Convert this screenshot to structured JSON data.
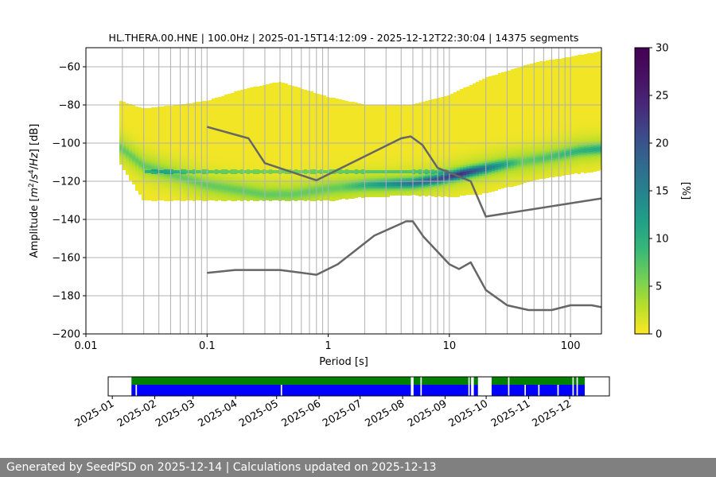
{
  "chart_data": [
    {
      "type": "heatmap",
      "title": "HL.THERA.00.HNE | 100.0Hz | 2025-01-15T14:12:09 - 2025-12-12T22:30:04 | 14375 segments",
      "xlabel": "Period [s]",
      "ylabel_parts": [
        "Amplitude [",
        "m",
        "2",
        "/",
        "s",
        "4",
        "/",
        "Hz",
        "] [dB]"
      ],
      "x_scale": "log",
      "xlim": [
        0.01,
        180
      ],
      "ylim": [
        -200,
        -50
      ],
      "x_ticks": [
        {
          "value": 0.01,
          "label": "0.01"
        },
        {
          "value": 0.1,
          "label": "0.1"
        },
        {
          "value": 1,
          "label": "1"
        },
        {
          "value": 10,
          "label": "10"
        },
        {
          "value": 100,
          "label": "100"
        }
      ],
      "y_ticks": [
        {
          "value": -60,
          "label": "−60"
        },
        {
          "value": -80,
          "label": "−80"
        },
        {
          "value": -100,
          "label": "−100"
        },
        {
          "value": -120,
          "label": "−120"
        },
        {
          "value": -140,
          "label": "−140"
        },
        {
          "value": -160,
          "label": "−160"
        },
        {
          "value": -180,
          "label": "−180"
        },
        {
          "value": -200,
          "label": "−200"
        }
      ],
      "vertical_gridlines": [
        0.02,
        0.03,
        0.04,
        0.05,
        0.06,
        0.07,
        0.08,
        0.09,
        0.1,
        0.2,
        0.3,
        0.4,
        0.5,
        0.6,
        0.7,
        0.8,
        0.9,
        1,
        2,
        3,
        4,
        5,
        6,
        7,
        8,
        9,
        10,
        20,
        30,
        40,
        50,
        60,
        70,
        80,
        90,
        100
      ],
      "horizontal_grid": true,
      "colorbar": {
        "label": "[%]",
        "range": [
          0,
          30
        ],
        "ticks": [
          {
            "value": 0,
            "label": "0"
          },
          {
            "value": 5,
            "label": "5"
          },
          {
            "value": 10,
            "label": "10"
          },
          {
            "value": 15,
            "label": "15"
          },
          {
            "value": 20,
            "label": "20"
          },
          {
            "value": 25,
            "label": "25"
          },
          {
            "value": 30,
            "label": "30"
          }
        ],
        "colormap": "viridis_r"
      },
      "density_band": {
        "period_range": [
          0.019,
          180
        ],
        "peak_curve": [
          [
            0.019,
            -102
          ],
          [
            0.03,
            -112
          ],
          [
            0.1,
            -122
          ],
          [
            0.3,
            -127
          ],
          [
            0.5,
            -127
          ],
          [
            1,
            -124
          ],
          [
            2,
            -122
          ],
          [
            5,
            -121
          ],
          [
            8,
            -119
          ],
          [
            15,
            -115
          ],
          [
            30,
            -111
          ],
          [
            60,
            -108
          ],
          [
            120,
            -104
          ],
          [
            180,
            -103
          ]
        ],
        "upper_envelope": [
          [
            0.019,
            -78
          ],
          [
            0.03,
            -82
          ],
          [
            0.06,
            -80
          ],
          [
            0.1,
            -78
          ],
          [
            0.2,
            -72
          ],
          [
            0.4,
            -68
          ],
          [
            1,
            -76
          ],
          [
            2,
            -80
          ],
          [
            5,
            -80
          ],
          [
            10,
            -75
          ],
          [
            20,
            -66
          ],
          [
            50,
            -58
          ],
          [
            100,
            -55
          ],
          [
            180,
            -52
          ]
        ],
        "lower_envelope": [
          [
            0.019,
            -110
          ],
          [
            0.03,
            -130
          ],
          [
            1,
            -130
          ],
          [
            2,
            -128
          ],
          [
            5,
            -127
          ],
          [
            10,
            -128
          ],
          [
            20,
            -126
          ],
          [
            60,
            -118
          ],
          [
            180,
            -114
          ]
        ],
        "secondary_line_db": -115,
        "secondary_line_range": [
          0.03,
          10
        ]
      },
      "series": [
        {
          "name": "",
          "color": "#666666",
          "points": [
            [
              0.1,
              -91.5
            ],
            [
              0.22,
              -97.5
            ],
            [
              0.3,
              -110.5
            ],
            [
              0.8,
              -119.5
            ],
            [
              4,
              -97.5
            ],
            [
              4.8,
              -96.5
            ],
            [
              6,
              -101
            ],
            [
              8,
              -113
            ],
            [
              15,
              -120
            ],
            [
              20,
              -138.5
            ],
            [
              180,
              -129
            ]
          ]
        },
        {
          "name": "",
          "color": "#666666",
          "points": [
            [
              0.1,
              -168
            ],
            [
              0.17,
              -166.5
            ],
            [
              0.4,
              -166.5
            ],
            [
              0.8,
              -169
            ],
            [
              1.2,
              -163.5
            ],
            [
              2.4,
              -148.5
            ],
            [
              4.4,
              -141
            ],
            [
              5,
              -141
            ],
            [
              6.1,
              -149
            ],
            [
              10,
              -163.5
            ],
            [
              12,
              -166
            ],
            [
              15,
              -162.5
            ],
            [
              20,
              -177
            ],
            [
              30,
              -185
            ],
            [
              45,
              -187.5
            ],
            [
              70,
              -187.5
            ],
            [
              100,
              -185
            ],
            [
              150,
              -185
            ],
            [
              180,
              -186
            ]
          ]
        }
      ]
    },
    {
      "type": "timeline",
      "date_range": [
        "2025-01-15",
        "2025-12-12"
      ],
      "axis_range": [
        "2024-12-29",
        "2025-12-30"
      ],
      "x_ticks": [
        "2025-01",
        "2025-02",
        "2025-03",
        "2025-04",
        "2025-05",
        "2025-06",
        "2025-07",
        "2025-08",
        "2025-09",
        "2025-10",
        "2025-11",
        "2025-12"
      ],
      "tracks": [
        {
          "name": "",
          "color": "#008000"
        },
        {
          "name": "",
          "color": "#0000ff"
        }
      ],
      "coverage_gaps": [
        {
          "track": 1,
          "from": "2025-01-18",
          "to": "2025-01-18"
        },
        {
          "track": 1,
          "from": "2025-05-04",
          "to": "2025-05-04"
        },
        {
          "track": 0,
          "from": "2025-08-07",
          "to": "2025-08-08"
        },
        {
          "track": 1,
          "from": "2025-08-07",
          "to": "2025-08-08"
        },
        {
          "track": 0,
          "from": "2025-08-14",
          "to": "2025-08-14"
        },
        {
          "track": 1,
          "from": "2025-08-14",
          "to": "2025-08-14"
        },
        {
          "track": 0,
          "from": "2025-09-18",
          "to": "2025-09-18"
        },
        {
          "track": 1,
          "from": "2025-09-18",
          "to": "2025-09-18"
        },
        {
          "track": 0,
          "from": "2025-09-20",
          "to": "2025-09-21"
        },
        {
          "track": 1,
          "from": "2025-09-20",
          "to": "2025-09-21"
        },
        {
          "track": 0,
          "from": "2025-09-25",
          "to": "2025-10-04"
        },
        {
          "track": 1,
          "from": "2025-09-25",
          "to": "2025-10-04"
        },
        {
          "track": 0,
          "from": "2025-10-17",
          "to": "2025-10-17"
        },
        {
          "track": 1,
          "from": "2025-10-17",
          "to": "2025-10-17"
        },
        {
          "track": 1,
          "from": "2025-10-29",
          "to": "2025-10-29"
        },
        {
          "track": 1,
          "from": "2025-11-08",
          "to": "2025-11-08"
        },
        {
          "track": 1,
          "from": "2025-11-22",
          "to": "2025-11-22"
        },
        {
          "track": 0,
          "from": "2025-12-03",
          "to": "2025-12-03"
        },
        {
          "track": 1,
          "from": "2025-12-03",
          "to": "2025-12-03"
        },
        {
          "track": 0,
          "from": "2025-12-06",
          "to": "2025-12-06"
        },
        {
          "track": 1,
          "from": "2025-12-06",
          "to": "2025-12-06"
        }
      ]
    }
  ],
  "footer": {
    "text": "Generated by SeedPSD on 2025-12-14 | Calculations updated on 2025-12-13"
  }
}
